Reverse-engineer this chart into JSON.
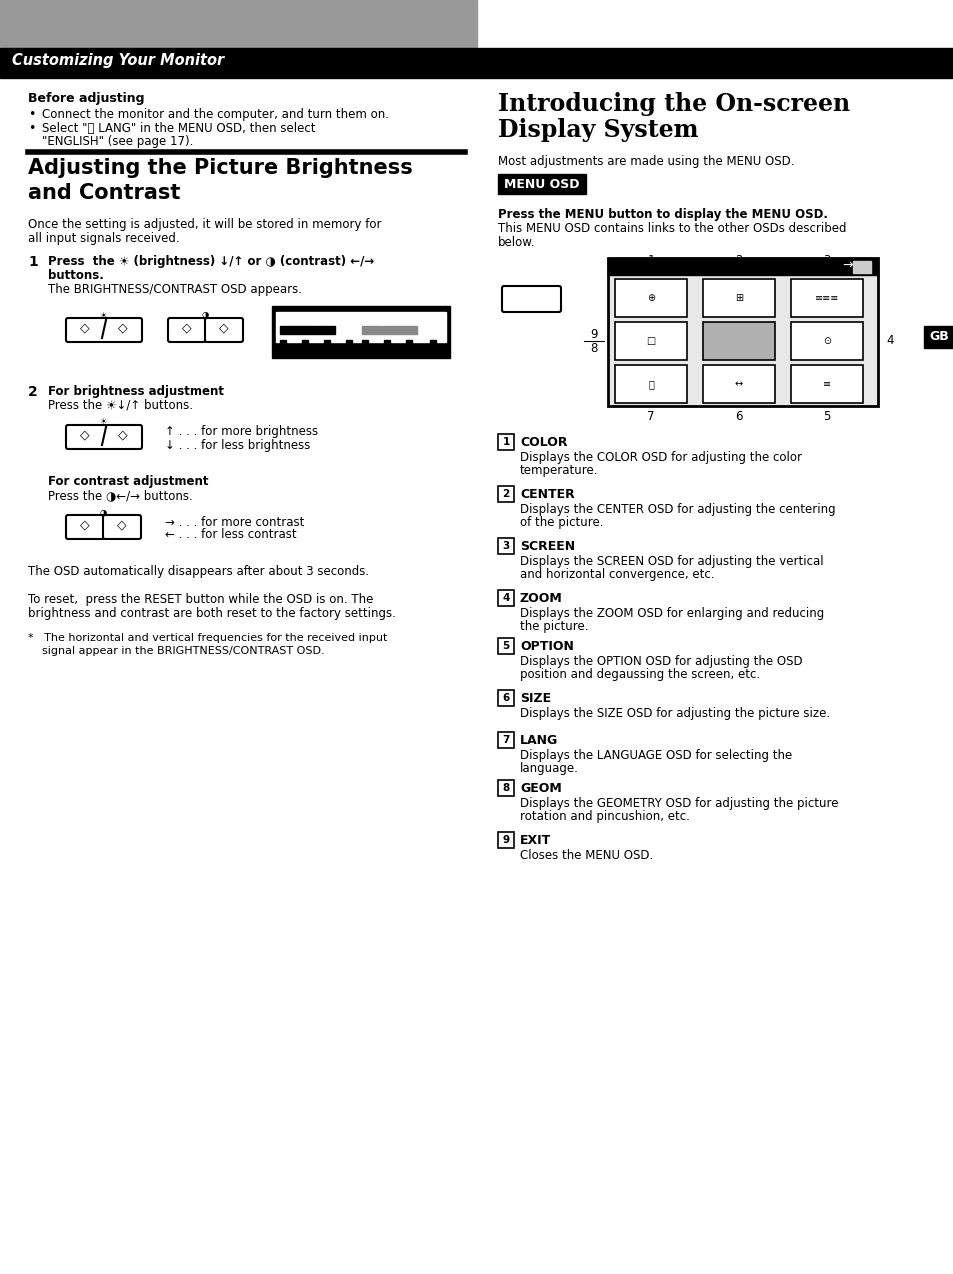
{
  "bg_color": "#ffffff",
  "header_bar_color": "#000000",
  "header_text": "Customizing Your Monitor",
  "header_text_color": "#ffffff",
  "header_gray_color": "#999999",
  "left_col": {
    "before_adjusting_title": "Before adjusting",
    "bullet1": "Connect the monitor and the computer, and turn them on.",
    "bullet2_line1": "Select \"Ⓐ LANG\" in the MENU OSD, then select",
    "bullet2_line2": "\"ENGLISH\" (see page 17).",
    "section_title_line1": "Adjusting the Picture Brightness",
    "section_title_line2": "and Contrast",
    "section_intro_line1": "Once the setting is adjusted, it will be stored in memory for",
    "section_intro_line2": "all input signals received.",
    "step1_bold_line1": "Press  the ☀ (brightness) ↓/↑ or ◑ (contrast) ←/→",
    "step1_bold_line2": "buttons.",
    "step1_text": "The BRIGHTNESS/CONTRAST OSD appears.",
    "step2_bold1": "For brightness adjustment",
    "step2_text1": "Press the ☀↓/↑ buttons.",
    "brightness_up": "↑ . . . for more brightness",
    "brightness_down": "↓ . . . for less brightness",
    "step2_bold2": "For contrast adjustment",
    "step2_text2": "Press the ◑←/→ buttons.",
    "contrast_right": "→ . . . for more contrast",
    "contrast_left": "← . . . for less contrast",
    "auto_text": "The OSD automatically disappears after about 3 seconds.",
    "reset_line1": "To reset,  press the RESET button while the OSD is on. The",
    "reset_line2": "brightness and contrast are both reset to the factory settings.",
    "footnote_line1": "*   The horizontal and vertical frequencies for the received input",
    "footnote_line2": "    signal appear in the BRIGHTNESS/CONTRAST OSD."
  },
  "right_col": {
    "section_title_line1": "Introducing the On-screen",
    "section_title_line2": "Display System",
    "section_intro": "Most adjustments are made using the MENU OSD.",
    "menu_osd_label": "MENU OSD",
    "press_menu_bold": "Press the MENU button to display the MENU OSD.",
    "press_menu_line1": "This MENU OSD contains links to the other OSDs described",
    "press_menu_line2": "below.",
    "items": [
      {
        "num": "1",
        "name": "COLOR",
        "desc_line1": "Displays the COLOR OSD for adjusting the color",
        "desc_line2": "temperature."
      },
      {
        "num": "2",
        "name": "CENTER",
        "desc_line1": "Displays the CENTER OSD for adjusting the centering",
        "desc_line2": "of the picture."
      },
      {
        "num": "3",
        "name": "SCREEN",
        "desc_line1": "Displays the SCREEN OSD for adjusting the vertical",
        "desc_line2": "and horizontal convergence, etc."
      },
      {
        "num": "4",
        "name": "ZOOM",
        "desc_line1": "Displays the ZOOM OSD for enlarging and reducing",
        "desc_line2": "the picture."
      },
      {
        "num": "5",
        "name": "OPTION",
        "desc_line1": "Displays the OPTION OSD for adjusting the OSD",
        "desc_line2": "position and degaussing the screen, etc."
      },
      {
        "num": "6",
        "name": "SIZE",
        "desc_line1": "Displays the SIZE OSD for adjusting the picture size.",
        "desc_line2": ""
      },
      {
        "num": "7",
        "name": "LANG",
        "desc_line1": "Displays the LANGUAGE OSD for selecting the",
        "desc_line2": "language."
      },
      {
        "num": "8",
        "name": "GEOM",
        "desc_line1": "Displays the GEOMETRY OSD for adjusting the picture",
        "desc_line2": "rotation and pincushion, etc."
      },
      {
        "num": "9",
        "name": "EXIT",
        "desc_line1": "Closes the MENU OSD.",
        "desc_line2": ""
      }
    ]
  },
  "gb_label": "GB",
  "gb_bg": "#000000",
  "gb_text_color": "#ffffff"
}
